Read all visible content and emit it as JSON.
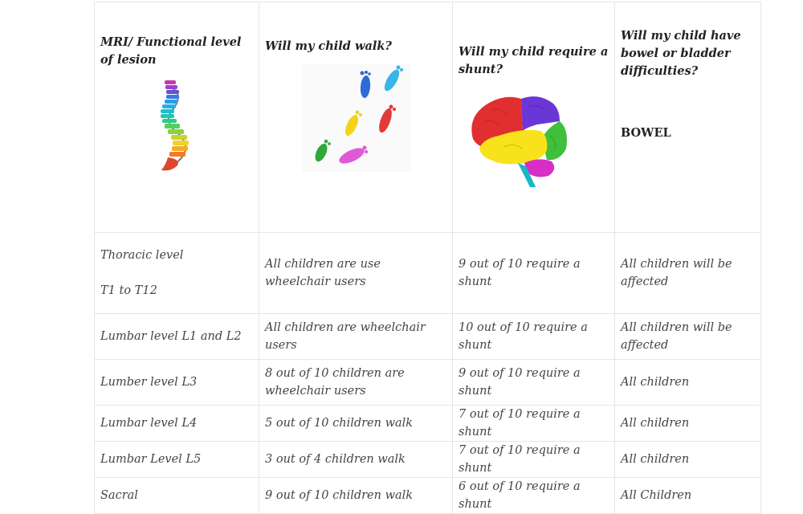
{
  "header": {
    "col1": "MRI/ Functional level of lesion",
    "col2": "Will my child walk?",
    "col3": "Will my child require a shunt?",
    "col4": "Will my child have bowel or bladder difficulties?",
    "col4_sub": "BOWEL"
  },
  "images": {
    "spine": "spine-icon",
    "feet": "footprints-icon",
    "brain": "brain-icon"
  },
  "rows": [
    {
      "level_line1": "Thoracic level",
      "level_line2": "T1 to T12",
      "walk": "All children are use wheelchair users",
      "shunt": "9 out of 10 require a shunt",
      "bowel": "All children will be affected"
    },
    {
      "level": "Lumbar level L1 and L2",
      "walk": "All children are wheelchair users",
      "shunt": "10 out of 10 require a shunt",
      "bowel": "All children will be affected"
    },
    {
      "level": "Lumber level L3",
      "walk": "8 out of 10 children are wheelchair users",
      "shunt": "9 out of 10 require a shunt",
      "bowel": "All children"
    },
    {
      "level": "Lumbar level L4",
      "walk": "5 out of 10 children walk",
      "shunt": "7 out of 10 require a shunt",
      "bowel": "All children"
    },
    {
      "level": "Lumbar Level L5",
      "walk": "3 out of 4 children walk",
      "shunt": "7 out of 10 require a shunt",
      "bowel": "All children"
    },
    {
      "level": "Sacral",
      "walk": "9 out of 10 children walk",
      "shunt": "6 out of 10 require a shunt",
      "bowel": "All Children"
    }
  ]
}
